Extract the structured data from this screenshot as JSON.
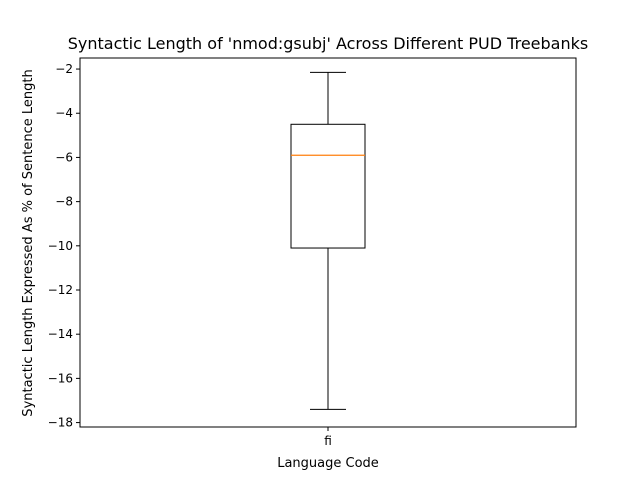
{
  "chart_data": {
    "type": "box",
    "title": "Syntactic Length of 'nmod:gsubj' Across Different PUD Treebanks",
    "xlabel": "Language Code",
    "ylabel": "Syntactic Length Expressed As % of Sentence Length",
    "categories": [
      "fi"
    ],
    "boxes": [
      {
        "category": "fi",
        "whisker_low": -17.4,
        "q1": -10.1,
        "median": -5.9,
        "q3": -4.5,
        "whisker_high": -2.15
      }
    ],
    "ylim": [
      -18.2,
      -1.5
    ],
    "yticks": [
      -18,
      -16,
      -14,
      -12,
      -10,
      -8,
      -6,
      -4,
      -2
    ],
    "grid": false,
    "colors": {
      "box": "#000000",
      "median": "#ff7f0e"
    }
  }
}
